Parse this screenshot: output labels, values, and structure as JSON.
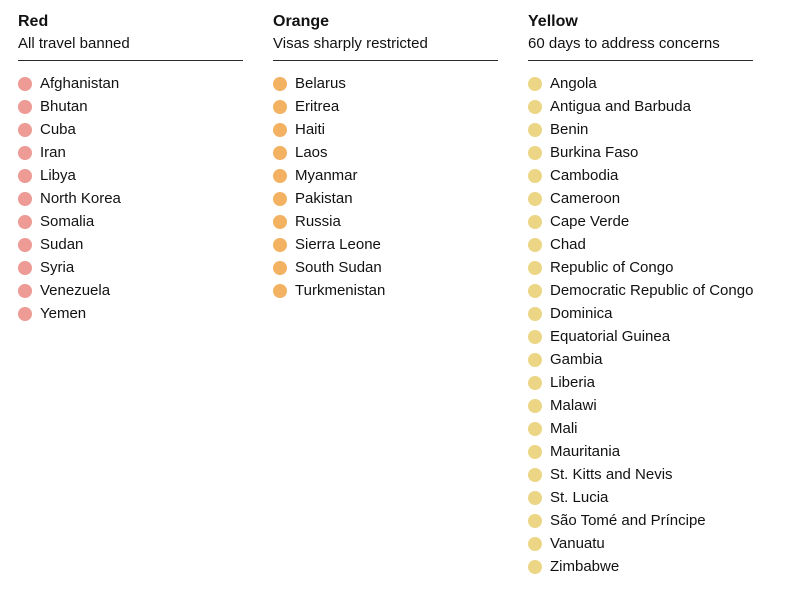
{
  "chart_data": {
    "type": "table",
    "groups": [
      {
        "label": "Red",
        "description": "All travel banned",
        "dot_color": "#ee9a95",
        "countries": [
          "Afghanistan",
          "Bhutan",
          "Cuba",
          "Iran",
          "Libya",
          "North Korea",
          "Somalia",
          "Sudan",
          "Syria",
          "Venezuela",
          "Yemen"
        ]
      },
      {
        "label": "Orange",
        "description": "Visas sharply restricted",
        "dot_color": "#f2b261",
        "countries": [
          "Belarus",
          "Eritrea",
          "Haiti",
          "Laos",
          "Myanmar",
          "Pakistan",
          "Russia",
          "Sierra Leone",
          "South Sudan",
          "Turkmenistan"
        ]
      },
      {
        "label": "Yellow",
        "description": "60 days to address concerns",
        "dot_color": "#ecd685",
        "countries": [
          "Angola",
          "Antigua and Barbuda",
          "Benin",
          "Burkina Faso",
          "Cambodia",
          "Cameroon",
          "Cape Verde",
          "Chad",
          "Republic of Congo",
          "Democratic Republic of Congo",
          "Dominica",
          "Equatorial Guinea",
          "Gambia",
          "Liberia",
          "Malawi",
          "Mali",
          "Mauritania",
          "St. Kitts and Nevis",
          "St. Lucia",
          "São Tomé and Príncipe",
          "Vanuatu",
          "Zimbabwe"
        ]
      }
    ]
  },
  "colors": {
    "text": "#121212",
    "divider": "#2b2b2b",
    "background": "#ffffff"
  }
}
